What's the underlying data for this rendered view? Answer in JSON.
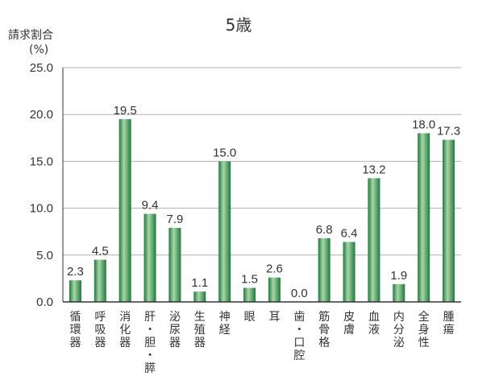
{
  "chart_data": {
    "type": "bar",
    "title": "5歳",
    "ylabel": "請求割合",
    "yunit": "(%)",
    "ylim": [
      0,
      25
    ],
    "yticks": [
      "0.0",
      "5.0",
      "10.0",
      "15.0",
      "20.0",
      "25.0"
    ],
    "grid": true,
    "categories": [
      "循環器",
      "呼吸器",
      "消化器",
      "肝・胆・膵",
      "泌尿器",
      "生殖器",
      "神経",
      "眼",
      "耳",
      "歯・口腔",
      "筋骨格",
      "皮膚",
      "血液",
      "内分泌",
      "全身性",
      "腫瘍"
    ],
    "values": [
      2.3,
      4.5,
      19.5,
      9.4,
      7.9,
      1.1,
      15.0,
      1.5,
      2.6,
      0.0,
      6.8,
      6.4,
      13.2,
      1.9,
      18.0,
      17.3
    ],
    "value_labels": [
      "2.3",
      "4.5",
      "19.5",
      "9.4",
      "7.9",
      "1.1",
      "15.0",
      "1.5",
      "2.6",
      "0.0",
      "6.8",
      "6.4",
      "13.2",
      "1.9",
      "18.0",
      "17.3"
    ],
    "colors": {
      "bar_dark": "#1e7a3c",
      "bar_light": "#a9d6a8",
      "grid": "#b0b0b0",
      "axis": "#333333"
    }
  }
}
